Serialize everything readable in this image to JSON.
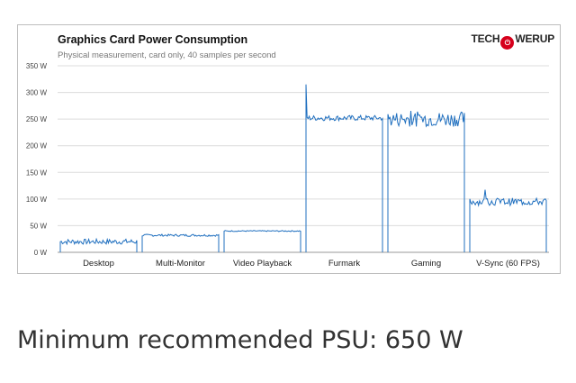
{
  "header": {
    "brand": "TECHPOWERUP"
  },
  "chart_data": {
    "type": "line",
    "title": "Graphics Card Power Consumption",
    "subtitle": "Physical measurement, card only, 40 samples per second",
    "xlabel": "",
    "ylabel": "",
    "ylim": [
      0,
      350
    ],
    "yticks": [
      "0 W",
      "50 W",
      "100 W",
      "150 W",
      "200 W",
      "250 W",
      "300 W",
      "350 W"
    ],
    "ytick_values": [
      0,
      50,
      100,
      150,
      200,
      250,
      300,
      350
    ],
    "grid": true,
    "color": "#1f6fbf",
    "categories": [
      "Desktop",
      "Multi-Monitor",
      "Video Playback",
      "Furmark",
      "Gaming",
      "V-Sync (60 FPS)"
    ],
    "segments": [
      {
        "name": "Desktop",
        "base": 20,
        "noise": 5,
        "spike": null
      },
      {
        "name": "Multi-Monitor",
        "base": 32,
        "noise": 2,
        "spike": null
      },
      {
        "name": "Video Playback",
        "base": 40,
        "noise": 1,
        "spike": null
      },
      {
        "name": "Furmark",
        "base": 252,
        "noise": 5,
        "spike": 315
      },
      {
        "name": "Gaming",
        "base": 250,
        "noise": 14,
        "spike": 275
      },
      {
        "name": "V-Sync (60 FPS)",
        "base": 95,
        "noise": 7,
        "spike": 125
      }
    ]
  },
  "footer": {
    "psu_label": "Minimum recommended PSU:",
    "psu_value": "650 W"
  }
}
